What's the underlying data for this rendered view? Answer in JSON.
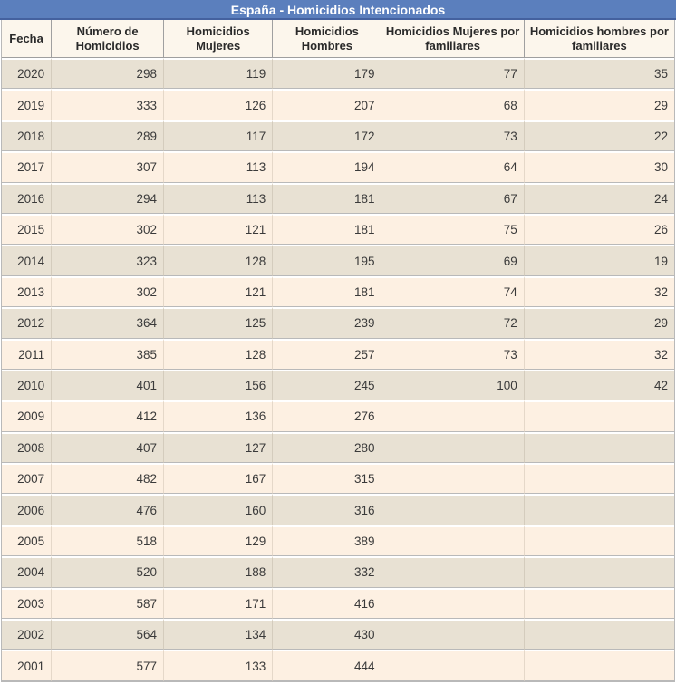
{
  "chart_data": {
    "type": "table",
    "title": "España - Homicidios Intencionados",
    "columns": [
      "Fecha",
      "Número de Homicidios",
      "Homicidios Mujeres",
      "Homicidios Hombres",
      "Homicidios Mujeres por familiares",
      "Homicidios hombres por familiares"
    ],
    "rows": [
      [
        "2020",
        "298",
        "119",
        "179",
        "77",
        "35"
      ],
      [
        "2019",
        "333",
        "126",
        "207",
        "68",
        "29"
      ],
      [
        "2018",
        "289",
        "117",
        "172",
        "73",
        "22"
      ],
      [
        "2017",
        "307",
        "113",
        "194",
        "64",
        "30"
      ],
      [
        "2016",
        "294",
        "113",
        "181",
        "67",
        "24"
      ],
      [
        "2015",
        "302",
        "121",
        "181",
        "75",
        "26"
      ],
      [
        "2014",
        "323",
        "128",
        "195",
        "69",
        "19"
      ],
      [
        "2013",
        "302",
        "121",
        "181",
        "74",
        "32"
      ],
      [
        "2012",
        "364",
        "125",
        "239",
        "72",
        "29"
      ],
      [
        "2011",
        "385",
        "128",
        "257",
        "73",
        "32"
      ],
      [
        "2010",
        "401",
        "156",
        "245",
        "100",
        "42"
      ],
      [
        "2009",
        "412",
        "136",
        "276",
        "",
        ""
      ],
      [
        "2008",
        "407",
        "127",
        "280",
        "",
        ""
      ],
      [
        "2007",
        "482",
        "167",
        "315",
        "",
        ""
      ],
      [
        "2006",
        "476",
        "160",
        "316",
        "",
        ""
      ],
      [
        "2005",
        "518",
        "129",
        "389",
        "",
        ""
      ],
      [
        "2004",
        "520",
        "188",
        "332",
        "",
        ""
      ],
      [
        "2003",
        "587",
        "171",
        "416",
        "",
        ""
      ],
      [
        "2002",
        "564",
        "134",
        "430",
        "",
        ""
      ],
      [
        "2001",
        "577",
        "133",
        "444",
        "",
        ""
      ]
    ],
    "colors": {
      "title_bg": "#5b7fbd",
      "title_text": "#ffffff",
      "header_bg": "#fcf6ec",
      "row_dark": "#e8e1d3",
      "row_light": "#fdf0e2",
      "text": "#3a3a3a",
      "separator": "#b9b9b9"
    }
  }
}
